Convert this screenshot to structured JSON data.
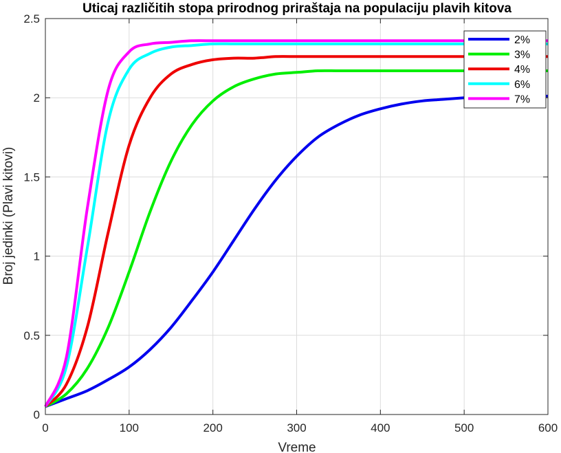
{
  "chart_data": {
    "type": "line",
    "title": "Uticaj različitih stopa prirodnog priraštaja na populaciju plavih kitova",
    "xlabel": "Vreme",
    "ylabel": "Broj jedinki (Plavi kitovi)",
    "xlim": [
      0,
      600
    ],
    "ylim": [
      0,
      2.5
    ],
    "xticks": [
      "0",
      "100",
      "200",
      "300",
      "400",
      "500",
      "600"
    ],
    "yticks": [
      "0",
      "0.5",
      "1",
      "1.5",
      "2",
      "2.5"
    ],
    "grid": true,
    "legend_position": "top-right",
    "x": [
      0,
      25,
      50,
      75,
      100,
      125,
      150,
      175,
      200,
      225,
      250,
      275,
      300,
      325,
      350,
      375,
      400,
      425,
      450,
      475,
      500,
      525,
      550,
      575,
      600
    ],
    "series": [
      {
        "name": "2%",
        "color": "#0000ee",
        "values": [
          0.05,
          0.1,
          0.15,
          0.22,
          0.3,
          0.41,
          0.55,
          0.72,
          0.9,
          1.1,
          1.3,
          1.48,
          1.63,
          1.75,
          1.83,
          1.89,
          1.93,
          1.96,
          1.98,
          1.99,
          2.0,
          2.01,
          2.01,
          2.01,
          2.01
        ]
      },
      {
        "name": "3%",
        "color": "#00ee00",
        "values": [
          0.05,
          0.13,
          0.29,
          0.55,
          0.9,
          1.28,
          1.6,
          1.83,
          1.98,
          2.07,
          2.12,
          2.15,
          2.16,
          2.17,
          2.17,
          2.17,
          2.17,
          2.17,
          2.17,
          2.17,
          2.17,
          2.17,
          2.17,
          2.17,
          2.17
        ]
      },
      {
        "name": "4%",
        "color": "#ee0000",
        "values": [
          0.05,
          0.19,
          0.55,
          1.15,
          1.7,
          2.0,
          2.15,
          2.21,
          2.24,
          2.25,
          2.25,
          2.26,
          2.26,
          2.26,
          2.26,
          2.26,
          2.26,
          2.26,
          2.26,
          2.26,
          2.26,
          2.26,
          2.26,
          2.26,
          2.26
        ]
      },
      {
        "name": "6%",
        "color": "#00ffff",
        "values": [
          0.05,
          0.3,
          1.05,
          1.85,
          2.18,
          2.28,
          2.32,
          2.33,
          2.34,
          2.34,
          2.34,
          2.34,
          2.34,
          2.34,
          2.34,
          2.34,
          2.34,
          2.34,
          2.34,
          2.34,
          2.34,
          2.34,
          2.34,
          2.34,
          2.34
        ]
      },
      {
        "name": "7%",
        "color": "#ff00ff",
        "values": [
          0.05,
          0.36,
          1.3,
          2.05,
          2.29,
          2.34,
          2.35,
          2.36,
          2.36,
          2.36,
          2.36,
          2.36,
          2.36,
          2.36,
          2.36,
          2.36,
          2.36,
          2.36,
          2.36,
          2.36,
          2.36,
          2.36,
          2.36,
          2.36,
          2.36
        ]
      }
    ]
  }
}
